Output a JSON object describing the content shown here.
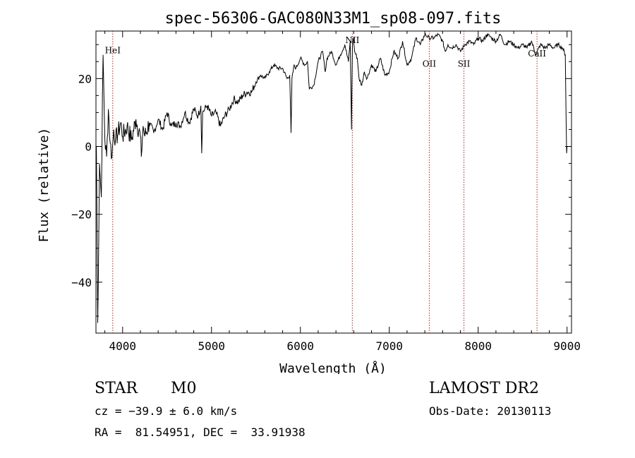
{
  "chart_data": {
    "type": "line",
    "title": "spec-56306-GAC080N33M1_sp08-097.fits",
    "xlabel": "Wavelength (Å)",
    "ylabel": "Flux (relative)",
    "xlim": [
      3700,
      9050
    ],
    "ylim": [
      -55,
      34
    ],
    "xticks": [
      4000,
      5000,
      6000,
      7000,
      8000,
      9000
    ],
    "yticks": [
      -40,
      -20,
      0,
      20
    ],
    "line_color": "#000000",
    "marker_color": "#b22222",
    "lines": [
      {
        "name": "HeI",
        "x": 3889,
        "label_y": 27.5
      },
      {
        "name": "NII",
        "x": 6584,
        "label_y": 30.5
      },
      {
        "name": "OII",
        "x": 7450,
        "label_y": 23.5
      },
      {
        "name": "SII",
        "x": 7840,
        "label_y": 23.5
      },
      {
        "name": "CaII",
        "x": 8662,
        "label_y": 26.5
      }
    ],
    "spectrum": {
      "x": [
        3705,
        3720,
        3740,
        3760,
        3780,
        3800,
        3820,
        3840,
        3860,
        3880,
        3900,
        3920,
        3950,
        3980,
        4000,
        4050,
        4100,
        4150,
        4200,
        4210,
        4230,
        4250,
        4300,
        4350,
        4400,
        4450,
        4500,
        4550,
        4600,
        4650,
        4700,
        4750,
        4800,
        4850,
        4880,
        4890,
        4900,
        4950,
        5000,
        5050,
        5100,
        5150,
        5200,
        5250,
        5300,
        5350,
        5400,
        5450,
        5500,
        5550,
        5600,
        5650,
        5700,
        5750,
        5800,
        5850,
        5880,
        5895,
        5905,
        5930,
        5950,
        6000,
        6050,
        6080,
        6100,
        6150,
        6200,
        6250,
        6280,
        6300,
        6350,
        6400,
        6450,
        6500,
        6540,
        6560,
        6575,
        6585,
        6595,
        6610,
        6640,
        6660,
        6690,
        6720,
        6750,
        6800,
        6850,
        6900,
        6950,
        7000,
        7050,
        7100,
        7150,
        7200,
        7250,
        7300,
        7350,
        7400,
        7450,
        7500,
        7550,
        7600,
        7630,
        7660,
        7700,
        7750,
        7800,
        7850,
        7900,
        7950,
        8000,
        8050,
        8100,
        8150,
        8200,
        8250,
        8300,
        8350,
        8400,
        8450,
        8500,
        8550,
        8600,
        8650,
        8700,
        8750,
        8800,
        8850,
        8900,
        8950,
        8980,
        8995,
        9000
      ],
      "flux": [
        0,
        -52,
        -5,
        -15,
        27,
        2,
        -3,
        11,
        1,
        -3,
        5,
        2,
        4,
        7,
        3,
        6,
        2,
        8,
        3,
        -3,
        6,
        3,
        7,
        4,
        8,
        5,
        10,
        6,
        7,
        6,
        10,
        7,
        11,
        9,
        12,
        -2,
        10,
        12,
        9,
        10,
        6,
        9,
        11,
        14,
        13,
        15,
        16,
        16,
        19,
        21,
        20,
        22,
        24,
        23,
        23,
        20,
        21,
        4,
        20,
        24,
        23,
        26,
        24,
        25,
        17,
        18,
        25,
        28,
        22,
        26,
        28,
        24,
        27,
        30,
        25,
        31,
        5,
        30,
        32,
        28,
        26,
        20,
        18,
        22,
        20,
        24,
        22,
        26,
        21,
        22,
        28,
        26,
        31,
        24,
        26,
        32,
        30,
        33,
        32,
        32,
        33,
        31,
        28,
        30,
        29,
        30,
        28,
        30,
        31,
        30,
        32,
        31,
        33,
        32,
        31,
        33,
        30,
        31,
        30,
        29,
        30,
        29,
        31,
        27,
        30,
        29,
        30,
        29,
        30,
        29,
        27,
        -2,
        0
      ]
    }
  },
  "info": {
    "class": "STAR",
    "subclass": "M0",
    "survey": "LAMOST DR2",
    "cz": "cz = −39.9 ± 6.0 km/s",
    "obs_date": "Obs-Date: 20130113",
    "radec": "RA =  81.54951, DEC =  33.91938"
  }
}
